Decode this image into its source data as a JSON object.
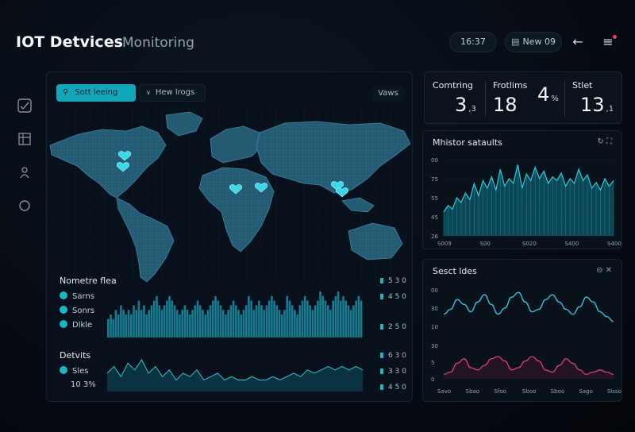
{
  "header": {
    "title": "IOT Detvices",
    "subtitle": "Monitoring",
    "time": "16:37",
    "date": "New 09",
    "back_icon": "arrow-left-icon",
    "menu_icon": "hamburger-menu-icon"
  },
  "sidebar": {
    "items": [
      {
        "icon": "chart-icon",
        "glyph": "✓"
      },
      {
        "icon": "grid-icon",
        "glyph": "▦"
      },
      {
        "icon": "device-icon",
        "glyph": "⚲"
      },
      {
        "icon": "circle-icon",
        "glyph": "◯"
      }
    ]
  },
  "map": {
    "search_label": "Sott leeing",
    "filter_label": "Hew lrogs",
    "view_label": "Vaws",
    "markers": [
      "north-america-east",
      "north-america-great-lakes",
      "egypt",
      "saudi-arabia",
      "china-east",
      "japan"
    ],
    "legend": {
      "title": "Nometre flea",
      "items": [
        "Sarns",
        "Sonrs",
        "Dlkle"
      ]
    },
    "right_axis_top": [
      "5 3 0",
      "4 5 0",
      "2 5 0"
    ],
    "section": {
      "title": "Detvits",
      "item": "Sles",
      "value": "10 3%"
    },
    "right_axis_bottom": [
      "6 3 0",
      "3 3 0",
      "4 5 0"
    ],
    "colors": {
      "accent": "#19b6c6",
      "panel": "#08111b",
      "land": "#2b6b85"
    }
  },
  "stats": [
    {
      "label": "Comtring",
      "value": "3",
      "unit": ",3"
    },
    {
      "label": "Frotlims",
      "value": "18",
      "unit": ""
    },
    {
      "label": "",
      "value": "4",
      "unit": "%"
    },
    {
      "label": "Stlet",
      "value": "13",
      "unit": ",1"
    }
  ],
  "chart_top": {
    "title": "Mhistor sataults",
    "actions": "↻ ⛶",
    "ytick_labels": [
      "00",
      "75",
      "55",
      "45",
      "26"
    ],
    "xtick_labels": [
      "S009",
      "S00",
      "S020",
      "S400",
      "S400"
    ]
  },
  "chart_bottom": {
    "title": "Sesct ldes",
    "actions": "⊖ ✕",
    "top_ytick_labels": [
      "00",
      "30",
      "10"
    ],
    "bottom_ytick_labels": [
      "30",
      "5",
      "0"
    ],
    "xtick_labels": [
      "Savo",
      "Sbao",
      "Sfoo",
      "Sboo",
      "Sboo",
      "Sago",
      "Sisso"
    ]
  },
  "chart_data": [
    {
      "type": "bar",
      "title": "",
      "values": [
        4,
        5,
        4,
        6,
        5,
        7,
        6,
        5,
        6,
        5,
        7,
        6,
        8,
        6,
        7,
        5,
        6,
        7,
        8,
        9,
        7,
        6,
        7,
        8,
        9,
        8,
        7,
        6,
        5,
        6,
        7,
        6,
        5,
        6,
        7,
        8,
        7,
        6,
        5,
        6,
        7,
        8,
        9,
        8,
        7,
        6,
        5,
        6,
        7,
        8,
        7,
        6,
        5,
        6,
        7,
        9,
        8,
        6,
        7,
        8,
        7,
        6,
        7,
        8,
        9,
        8,
        7,
        6,
        5,
        6,
        9,
        8,
        7,
        6,
        5,
        7,
        8,
        9,
        8,
        7,
        6,
        7,
        8,
        10,
        9,
        8,
        7,
        6,
        8,
        9,
        10,
        8,
        9,
        8,
        7,
        6,
        7,
        8,
        9,
        8
      ]
    },
    {
      "type": "area",
      "title": "",
      "values": [
        4,
        6,
        3,
        7,
        5,
        8,
        4,
        6,
        3,
        5,
        2,
        4,
        3,
        5,
        2,
        3,
        4,
        2,
        3,
        2,
        2,
        3,
        2,
        2,
        3,
        2,
        3,
        4,
        3,
        5,
        4,
        5,
        6,
        5,
        6,
        5,
        6,
        5
      ]
    },
    {
      "type": "area",
      "title": "Mhistor sataults",
      "values": [
        25,
        32,
        28,
        40,
        35,
        45,
        38,
        55,
        42,
        58,
        50,
        62,
        48,
        70,
        52,
        60,
        55,
        75,
        50,
        65,
        58,
        72,
        60,
        68,
        55,
        62,
        58,
        66,
        52,
        60,
        55,
        70,
        58,
        64,
        50,
        56,
        48,
        60,
        52,
        58
      ]
    },
    {
      "type": "line",
      "title": "Sesct ldes",
      "series": [
        {
          "values": [
            10,
            14,
            22,
            18,
            12,
            20,
            26,
            18,
            10,
            15,
            24,
            28,
            20,
            12,
            14,
            22,
            26,
            20,
            14,
            10,
            16,
            24,
            20,
            12,
            8,
            4
          ]
        },
        {
          "values": [
            4,
            6,
            14,
            18,
            10,
            8,
            12,
            18,
            20,
            16,
            8,
            10,
            16,
            20,
            16,
            8,
            6,
            12,
            18,
            14,
            8,
            4,
            6,
            8,
            6,
            4
          ]
        }
      ]
    }
  ]
}
